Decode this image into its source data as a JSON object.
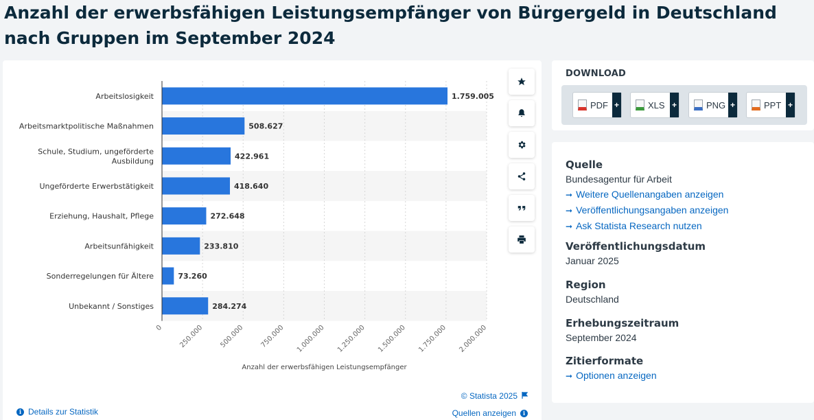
{
  "title": "Anzahl der erwerbsfähigen Leistungsempfänger von Bürgergeld in Deutschland nach Gruppen im September 2024",
  "chart_data": {
    "type": "bar",
    "orientation": "horizontal",
    "categories": [
      "Arbeitslosigkeit",
      "Arbeitsmarktpolitische Maßnahmen",
      "Schule, Studium, ungeförderte Ausbildung",
      "Ungeförderte Erwerbstätigkeit",
      "Erziehung, Haushalt, Pflege",
      "Arbeitsunfähigkeit",
      "Sonderregelungen für Ältere",
      "Unbekannt / Sonstiges"
    ],
    "category_lines": [
      [
        "Arbeitslosigkeit"
      ],
      [
        "Arbeitsmarktpolitische Maßnahmen"
      ],
      [
        "Schule, Studium, ungeförderte",
        "Ausbildung"
      ],
      [
        "Ungeförderte Erwerbstätigkeit"
      ],
      [
        "Erziehung, Haushalt, Pflege"
      ],
      [
        "Arbeitsunfähigkeit"
      ],
      [
        "Sonderregelungen für Ältere"
      ],
      [
        "Unbekannt / Sonstiges"
      ]
    ],
    "values": [
      1759005,
      508627,
      422961,
      418640,
      272648,
      233810,
      73260,
      284274
    ],
    "value_labels": [
      "1.759.005",
      "508.627",
      "422.961",
      "418.640",
      "272.648",
      "233.810",
      "73.260",
      "284.274"
    ],
    "xlabel": "Anzahl der erwerbsfähigen Leistungsempfänger",
    "xlim": [
      0,
      2000000
    ],
    "ticks": [
      0,
      250000,
      500000,
      750000,
      1000000,
      1250000,
      1500000,
      1750000,
      2000000
    ],
    "tick_labels": [
      "0",
      "250.000",
      "500.000",
      "750.000",
      "1.000.000",
      "1.250.000",
      "1.500.000",
      "1.750.000",
      "2.000.000"
    ],
    "bar_color": "#2876dd",
    "grid": "vertical dashed",
    "legend": "none"
  },
  "toolbar": {
    "items": [
      "star-icon",
      "bell-icon",
      "gear-icon",
      "share-icon",
      "quote-icon",
      "print-icon"
    ]
  },
  "footer": {
    "credit": "© Statista 2025",
    "details": "Details zur Statistik",
    "sources": "Quellen anzeigen"
  },
  "download": {
    "title": "DOWNLOAD",
    "buttons": [
      {
        "label": "PDF",
        "color": "#d9342b"
      },
      {
        "label": "XLS",
        "color": "#3c9a3c"
      },
      {
        "label": "PNG",
        "color": "#3b6fc4"
      },
      {
        "label": "PPT",
        "color": "#e36c1e"
      }
    ],
    "plus": "+"
  },
  "info": {
    "source_heading": "Quelle",
    "source_text": "Bundesagentur für Arbeit",
    "source_links": [
      "Weitere Quellenangaben anzeigen",
      "Veröffentlichungsangaben anzeigen",
      "Ask Statista Research nutzen"
    ],
    "pub_heading": "Veröffentlichungsdatum",
    "pub_text": "Januar 2025",
    "region_heading": "Region",
    "region_text": "Deutschland",
    "period_heading": "Erhebungszeitraum",
    "period_text": "September 2024",
    "cite_heading": "Zitierformate",
    "cite_link": "Optionen anzeigen",
    "arrow": "➞"
  }
}
